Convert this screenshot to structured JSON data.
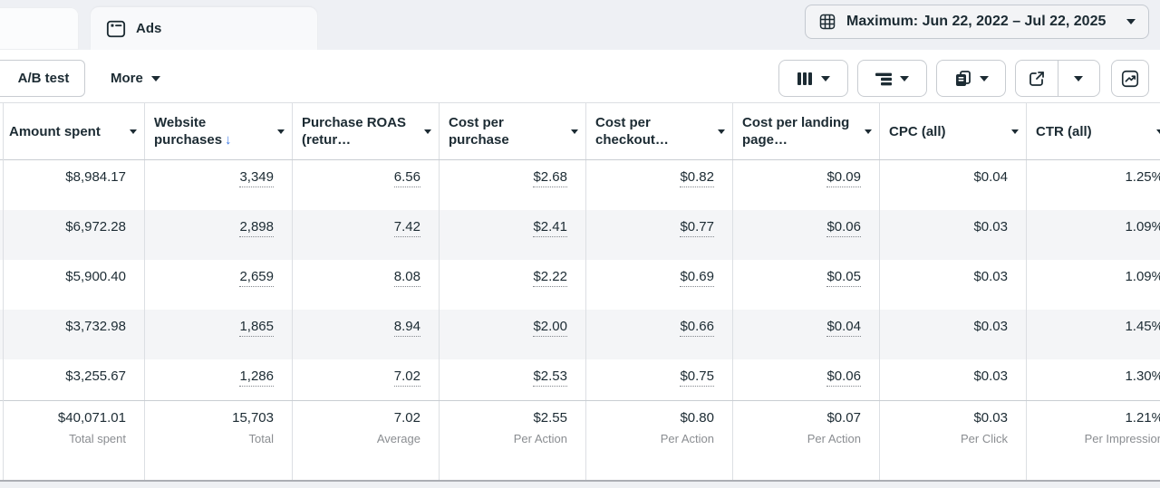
{
  "tabs": {
    "ads": {
      "label": "Ads",
      "icon": "ad-frame-icon"
    }
  },
  "date_filter": {
    "label": "Maximum: Jun 22, 2022 – Jul 22, 2025",
    "icon": "calendar-grid-icon"
  },
  "toolbar": {
    "ab_test_label": "A/B test",
    "more_label": "More",
    "icon_buttons": [
      {
        "name": "columns",
        "icon": "columns-icon",
        "has_caret": true
      },
      {
        "name": "breakdown",
        "icon": "breakdown-icon",
        "has_caret": true
      },
      {
        "name": "reports",
        "icon": "reports-icon",
        "has_caret": true
      },
      {
        "name": "export",
        "icon": "export-icon",
        "has_caret": true,
        "split": true
      },
      {
        "name": "view-charts",
        "icon": "trend-chart-icon",
        "has_caret": false
      }
    ]
  },
  "table": {
    "columns": [
      {
        "id": "amount_spent",
        "label": "Amount spent"
      },
      {
        "id": "website_purchases",
        "label": "Website purchases",
        "sort": "desc"
      },
      {
        "id": "purchase_roas",
        "label": "Purchase ROAS (retur…"
      },
      {
        "id": "cost_per_purchase",
        "label": "Cost per purchase"
      },
      {
        "id": "cost_per_checkout",
        "label": "Cost per checkout…"
      },
      {
        "id": "cost_per_landing_page",
        "label": "Cost per landing page…"
      },
      {
        "id": "cpc_all",
        "label": "CPC (all)"
      },
      {
        "id": "ctr_all",
        "label": "CTR (all)"
      }
    ],
    "underline_columns": [
      false,
      true,
      true,
      true,
      true,
      true,
      false,
      false
    ],
    "rows": [
      [
        "$8,984.17",
        "3,349",
        "6.56",
        "$2.68",
        "$0.82",
        "$0.09",
        "$0.04",
        "1.25%"
      ],
      [
        "$6,972.28",
        "2,898",
        "7.42",
        "$2.41",
        "$0.77",
        "$0.06",
        "$0.03",
        "1.09%"
      ],
      [
        "$5,900.40",
        "2,659",
        "8.08",
        "$2.22",
        "$0.69",
        "$0.05",
        "$0.03",
        "1.09%"
      ],
      [
        "$3,732.98",
        "1,865",
        "8.94",
        "$2.00",
        "$0.66",
        "$0.04",
        "$0.03",
        "1.45%"
      ],
      [
        "$3,255.67",
        "1,286",
        "7.02",
        "$2.53",
        "$0.75",
        "$0.06",
        "$0.03",
        "1.30%"
      ]
    ],
    "totals": {
      "values": [
        "$40,071.01",
        "15,703",
        "7.02",
        "$2.55",
        "$0.80",
        "$0.07",
        "$0.03",
        "1.21%"
      ],
      "labels": [
        "Total spent",
        "Total",
        "Average",
        "Per Action",
        "Per Action",
        "Per Action",
        "Per Click",
        "Per Impression"
      ]
    }
  },
  "colors": {
    "accent_sort_arrow": "#3b78e5",
    "text_primary": "#1c2b33",
    "text_secondary": "#8a8d91",
    "row_stripe": "#f4f5f7",
    "topbar_bg": "#eef0f4",
    "button_border": "#c8ccd1",
    "gridline": "#dcdfe3"
  }
}
